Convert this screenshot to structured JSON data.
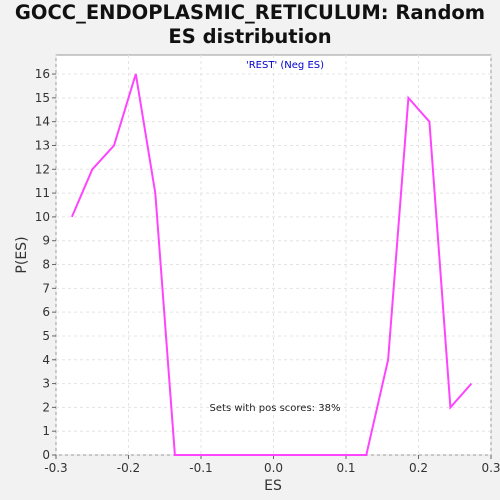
{
  "chart_data": {
    "type": "line",
    "title_lines": [
      "GOCC_ENDOPLASMIC_RETICULUM: Random",
      "ES distribution"
    ],
    "xlabel": "ES",
    "ylabel": "P(ES)",
    "xlim": [
      -0.3,
      0.3
    ],
    "ylim": [
      0,
      16.8
    ],
    "xticks": [
      -0.3,
      -0.2,
      -0.1,
      0.0,
      0.1,
      0.2,
      0.3
    ],
    "xtick_labels": [
      "-0.3",
      "-0.2",
      "-0.1",
      "0.0",
      "0.1",
      "0.2",
      "0.3"
    ],
    "yticks": [
      0,
      1,
      2,
      3,
      4,
      5,
      6,
      7,
      8,
      9,
      10,
      11,
      12,
      13,
      14,
      15,
      16
    ],
    "grid": true,
    "legend": {
      "text": "'REST' (Neg ES)",
      "color": "#0000cc",
      "placement": "top-center"
    },
    "annotation": "Sets with pos scores: 38%",
    "series": [
      {
        "color": "#ff44ff",
        "x": [
          -0.278,
          -0.25,
          -0.22,
          -0.19,
          -0.163,
          -0.136,
          0.0,
          0.128,
          0.158,
          0.186,
          0.215,
          0.244,
          0.273
        ],
        "y": [
          10,
          12,
          13,
          16,
          11,
          0,
          0,
          0,
          4,
          15,
          14,
          2,
          3
        ]
      }
    ]
  }
}
